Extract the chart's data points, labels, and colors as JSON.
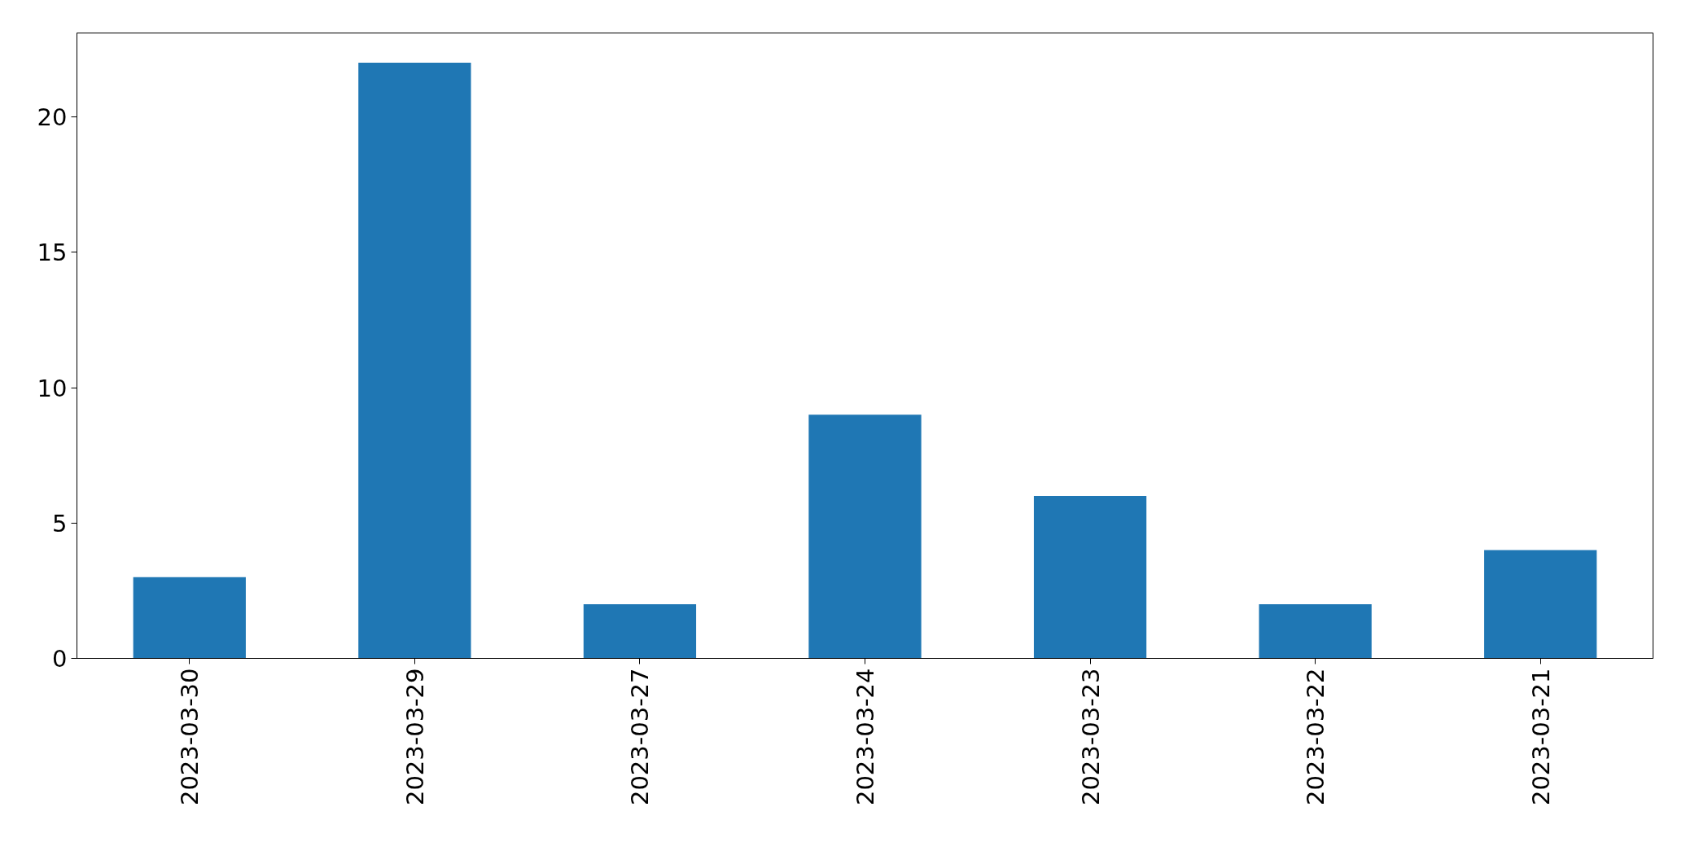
{
  "chart_data": {
    "type": "bar",
    "categories": [
      "2023-03-30",
      "2023-03-29",
      "2023-03-27",
      "2023-03-24",
      "2023-03-23",
      "2023-03-22",
      "2023-03-21"
    ],
    "values": [
      3,
      22,
      2,
      9,
      6,
      2,
      4
    ],
    "color": "#1f77b4",
    "ylim": [
      0,
      23.1
    ],
    "yticks": [
      0,
      5,
      10,
      15,
      20
    ],
    "grid": false
  }
}
